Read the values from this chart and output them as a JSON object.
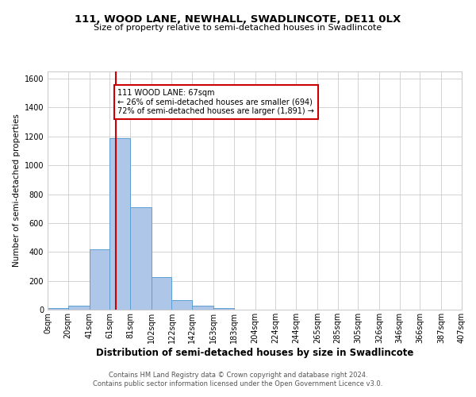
{
  "title_line1": "111, WOOD LANE, NEWHALL, SWADLINCOTE, DE11 0LX",
  "title_line2": "Size of property relative to semi-detached houses in Swadlincote",
  "xlabel": "Distribution of semi-detached houses by size in Swadlincote",
  "ylabel": "Number of semi-detached properties",
  "footer_line1": "Contains HM Land Registry data © Crown copyright and database right 2024.",
  "footer_line2": "Contains public sector information licensed under the Open Government Licence v3.0.",
  "annotation_line1": "111 WOOD LANE: 67sqm",
  "annotation_line2": "← 26% of semi-detached houses are smaller (694)",
  "annotation_line3": "72% of semi-detached houses are larger (1,891) →",
  "property_size_sqm": 67,
  "bin_edges": [
    0,
    20,
    41,
    61,
    81,
    102,
    122,
    142,
    163,
    183,
    204,
    224,
    244,
    265,
    285,
    305,
    326,
    346,
    366,
    387,
    407
  ],
  "bin_counts": [
    10,
    28,
    420,
    1190,
    710,
    228,
    65,
    28,
    12,
    0,
    0,
    0,
    0,
    0,
    0,
    0,
    0,
    0,
    0,
    0
  ],
  "bar_color": "#aec6e8",
  "bar_edge_color": "#5a9fd4",
  "red_line_color": "#cc0000",
  "annotation_box_edge_color": "#cc0000",
  "background_color": "#ffffff",
  "grid_color": "#cccccc",
  "ylim": [
    0,
    1650
  ],
  "yticks": [
    0,
    200,
    400,
    600,
    800,
    1000,
    1200,
    1400,
    1600
  ],
  "tick_labels": [
    "0sqm",
    "20sqm",
    "41sqm",
    "61sqm",
    "81sqm",
    "102sqm",
    "122sqm",
    "142sqm",
    "163sqm",
    "183sqm",
    "204sqm",
    "224sqm",
    "244sqm",
    "265sqm",
    "285sqm",
    "305sqm",
    "326sqm",
    "346sqm",
    "366sqm",
    "387sqm",
    "407sqm"
  ],
  "title1_fontsize": 9.5,
  "title2_fontsize": 8.0,
  "ylabel_fontsize": 7.5,
  "xlabel_fontsize": 8.5,
  "tick_fontsize": 7.0,
  "annotation_fontsize": 7.0,
  "footer_fontsize": 6.0
}
